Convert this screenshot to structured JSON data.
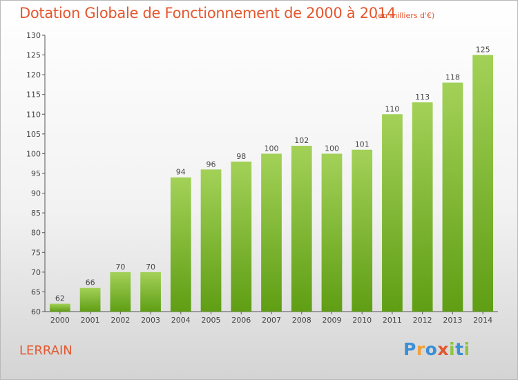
{
  "title": "Dotation Globale de Fonctionnement de 2000 à 2014",
  "subtitle": "(en milliers d'€)",
  "commune": "LERRAIN",
  "logo": {
    "letters": [
      "P",
      "r",
      "o",
      "x",
      "i",
      "t",
      "i"
    ],
    "colors": [
      "#3a8fd6",
      "#f2a03a",
      "#3a8fd6",
      "#e4572e",
      "#8cc63f",
      "#3a8fd6",
      "#8cc63f"
    ]
  },
  "colors": {
    "title": "#e4572e",
    "bar_top": "#a3d158",
    "bar_bottom": "#5f9e14"
  },
  "chart_data": {
    "type": "bar",
    "categories": [
      "2000",
      "2001",
      "2002",
      "2003",
      "2004",
      "2005",
      "2006",
      "2007",
      "2008",
      "2009",
      "2010",
      "2011",
      "2012",
      "2013",
      "2014"
    ],
    "values": [
      62,
      66,
      70,
      70,
      94,
      96,
      98,
      100,
      102,
      100,
      101,
      110,
      113,
      118,
      125
    ],
    "title": "Dotation Globale de Fonctionnement de 2000 à 2014",
    "ylim": [
      60,
      130
    ],
    "yticks": [
      60,
      65,
      70,
      75,
      80,
      85,
      90,
      95,
      100,
      105,
      110,
      115,
      120,
      125,
      130
    ],
    "grid": false
  }
}
